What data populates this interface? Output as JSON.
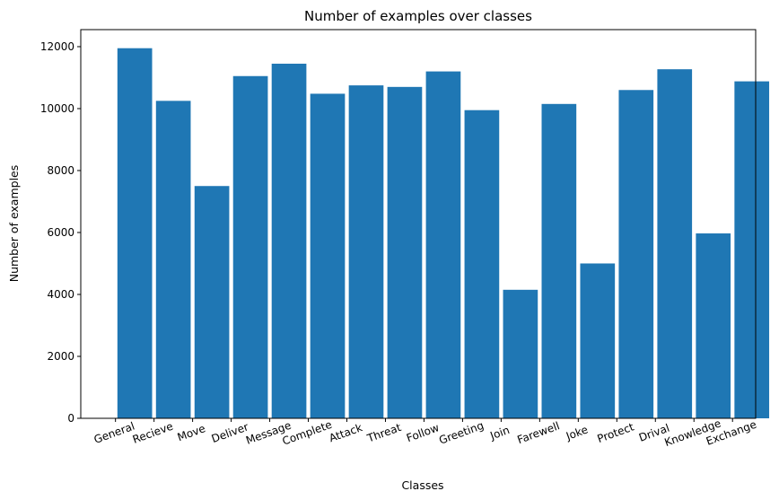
{
  "chart_data": {
    "type": "bar",
    "title": "Number of examples over classes",
    "xlabel": "Classes",
    "ylabel": "Number of examples",
    "categories": [
      "General",
      "Recieve",
      "Move",
      "Deliver",
      "Message",
      "Complete",
      "Attack",
      "Threat",
      "Follow",
      "Greeting",
      "Join",
      "Farewell",
      "Joke",
      "Protect",
      "Drival",
      "Knowledge",
      "Exchange"
    ],
    "values": [
      11950,
      10250,
      7500,
      11050,
      11450,
      10480,
      10750,
      10700,
      11200,
      9950,
      4150,
      10150,
      5000,
      10600,
      11270,
      5970,
      10880
    ],
    "ylim": [
      0,
      12550
    ],
    "yticks": [
      0,
      2000,
      4000,
      6000,
      8000,
      10000,
      12000
    ],
    "ytick_labels": [
      "0",
      "2000",
      "4000",
      "6000",
      "8000",
      "10000",
      "12000"
    ],
    "grid": false,
    "legend": "none",
    "bar_color": "#1f77b4",
    "xtick_rotation_deg": -20
  }
}
